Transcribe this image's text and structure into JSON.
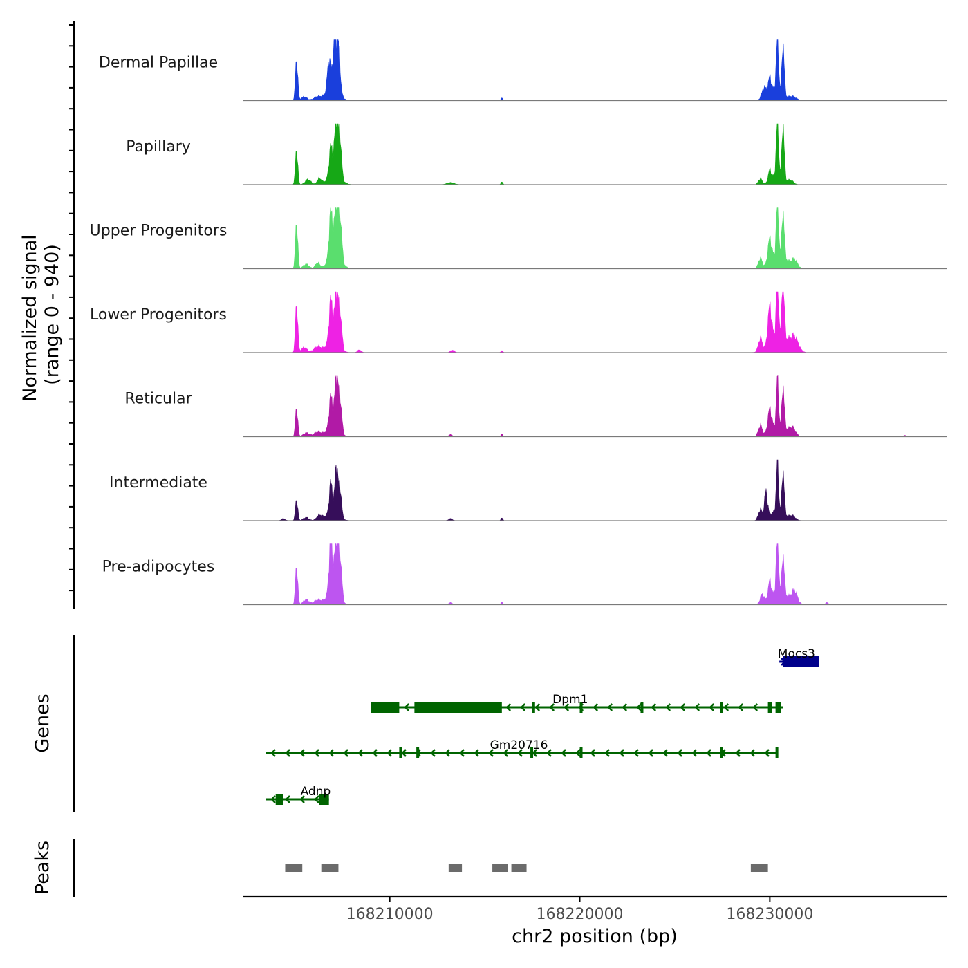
{
  "chart_data": {
    "type": "area",
    "title": "",
    "xlabel": "chr2 position (bp)",
    "ylabel": "Normalized signal\n(range 0 - 940)",
    "ylabel_line1": "Normalized signal",
    "ylabel_line2": "(range 0 - 940)",
    "ylim": [
      0,
      940
    ],
    "xlim": [
      168202300,
      168239300
    ],
    "x_ticks": [
      168210000,
      168220000,
      168230000
    ],
    "x_tick_labels": [
      "168210000",
      "168220000",
      "168230000"
    ],
    "series": [
      {
        "name": "Dermal Papillae",
        "color": "#1a3fdc",
        "peaks": [
          [
            168205100,
            660,
            60
          ],
          [
            168205500,
            60,
            150
          ],
          [
            168206200,
            60,
            200
          ],
          [
            168206800,
            440,
            80
          ],
          [
            168207100,
            720,
            90
          ],
          [
            168207300,
            700,
            90
          ],
          [
            168207000,
            250,
            300
          ],
          [
            168215900,
            40,
            50
          ],
          [
            168229700,
            160,
            120
          ],
          [
            168230000,
            230,
            80
          ],
          [
            168230400,
            840,
            60
          ],
          [
            168230700,
            810,
            60
          ],
          [
            168230300,
            180,
            350
          ],
          [
            168231200,
            60,
            200
          ]
        ]
      },
      {
        "name": "Papillary",
        "color": "#16a816",
        "peaks": [
          [
            168205100,
            560,
            60
          ],
          [
            168205700,
            80,
            150
          ],
          [
            168206300,
            90,
            120
          ],
          [
            168206900,
            420,
            90
          ],
          [
            168207200,
            940,
            90
          ],
          [
            168207400,
            560,
            70
          ],
          [
            168207100,
            200,
            300
          ],
          [
            168213200,
            30,
            200
          ],
          [
            168215900,
            40,
            50
          ],
          [
            168229500,
            90,
            100
          ],
          [
            168230000,
            160,
            80
          ],
          [
            168230400,
            880,
            60
          ],
          [
            168230700,
            860,
            60
          ],
          [
            168230400,
            160,
            300
          ],
          [
            168231100,
            60,
            150
          ]
        ]
      },
      {
        "name": "Upper Progenitors",
        "color": "#5ade6e",
        "peaks": [
          [
            168205100,
            740,
            60
          ],
          [
            168205600,
            70,
            150
          ],
          [
            168206200,
            90,
            120
          ],
          [
            168206900,
            680,
            90
          ],
          [
            168207200,
            920,
            90
          ],
          [
            168207400,
            640,
            80
          ],
          [
            168207100,
            250,
            300
          ],
          [
            168229500,
            150,
            100
          ],
          [
            168230000,
            360,
            100
          ],
          [
            168230400,
            930,
            60
          ],
          [
            168230700,
            720,
            60
          ],
          [
            168230500,
            220,
            400
          ],
          [
            168231300,
            120,
            150
          ]
        ]
      },
      {
        "name": "Lower Progenitors",
        "color": "#ee22e4",
        "peaks": [
          [
            168205100,
            780,
            60
          ],
          [
            168205500,
            80,
            150
          ],
          [
            168206200,
            90,
            200
          ],
          [
            168206900,
            620,
            90
          ],
          [
            168207200,
            840,
            90
          ],
          [
            168207400,
            520,
            80
          ],
          [
            168207000,
            200,
            300
          ],
          [
            168208400,
            40,
            100
          ],
          [
            168213300,
            40,
            100
          ],
          [
            168215900,
            30,
            50
          ],
          [
            168229500,
            200,
            100
          ],
          [
            168230000,
            560,
            100
          ],
          [
            168230400,
            1000,
            60
          ],
          [
            168230700,
            960,
            60
          ],
          [
            168230500,
            280,
            450
          ],
          [
            168231300,
            200,
            200
          ]
        ]
      },
      {
        "name": "Reticular",
        "color": "#b11aa6",
        "peaks": [
          [
            168205100,
            460,
            60
          ],
          [
            168205600,
            60,
            150
          ],
          [
            168206200,
            70,
            200
          ],
          [
            168206900,
            460,
            90
          ],
          [
            168207200,
            820,
            90
          ],
          [
            168207400,
            480,
            80
          ],
          [
            168207000,
            160,
            300
          ],
          [
            168213200,
            30,
            100
          ],
          [
            168215900,
            40,
            50
          ],
          [
            168229500,
            160,
            100
          ],
          [
            168230000,
            340,
            100
          ],
          [
            168230400,
            700,
            60
          ],
          [
            168230700,
            660,
            60
          ],
          [
            168230500,
            160,
            450
          ],
          [
            168231200,
            100,
            150
          ],
          [
            168237100,
            20,
            60
          ]
        ]
      },
      {
        "name": "Intermediate",
        "color": "#360e5a",
        "peaks": [
          [
            168205100,
            340,
            60
          ],
          [
            168204400,
            30,
            100
          ],
          [
            168205600,
            50,
            150
          ],
          [
            168206300,
            80,
            150
          ],
          [
            168206900,
            440,
            80
          ],
          [
            168207200,
            760,
            80
          ],
          [
            168207400,
            420,
            70
          ],
          [
            168207000,
            150,
            300
          ],
          [
            168213200,
            30,
            100
          ],
          [
            168215900,
            40,
            50
          ],
          [
            168229500,
            160,
            100
          ],
          [
            168229800,
            400,
            80
          ],
          [
            168230400,
            720,
            60
          ],
          [
            168230700,
            680,
            60
          ],
          [
            168230400,
            150,
            400
          ],
          [
            168231200,
            60,
            150
          ]
        ]
      },
      {
        "name": "Pre-adipocytes",
        "color": "#bd55f0",
        "peaks": [
          [
            168205100,
            620,
            60
          ],
          [
            168205600,
            80,
            150
          ],
          [
            168206200,
            70,
            200
          ],
          [
            168206900,
            820,
            90
          ],
          [
            168207200,
            980,
            90
          ],
          [
            168207400,
            640,
            80
          ],
          [
            168207000,
            200,
            300
          ],
          [
            168213200,
            30,
            100
          ],
          [
            168215900,
            40,
            50
          ],
          [
            168229600,
            140,
            100
          ],
          [
            168230000,
            260,
            80
          ],
          [
            168230400,
            980,
            60
          ],
          [
            168230700,
            620,
            60
          ],
          [
            168230500,
            200,
            450
          ],
          [
            168231300,
            180,
            150
          ],
          [
            168233000,
            40,
            60
          ]
        ]
      }
    ],
    "genes_track_label": "Genes",
    "genes": [
      {
        "name": "Mocs3",
        "strand": "+",
        "color": "#00008b",
        "row": 0,
        "start": 168230500,
        "end": 168232600,
        "exons": [
          [
            168230700,
            168232600
          ]
        ],
        "label_x": 168231400
      },
      {
        "name": "Dpm1",
        "strand": "-",
        "color": "#006400",
        "row": 1,
        "start": 168209000,
        "end": 168230700,
        "exons": [
          [
            168209000,
            168210500
          ],
          [
            168211300,
            168215900
          ],
          [
            168217500,
            168217600
          ],
          [
            168220000,
            168220100
          ],
          [
            168223200,
            168223300
          ],
          [
            168227400,
            168227500
          ],
          [
            168229900,
            168230100
          ],
          [
            168230300,
            168230600
          ]
        ],
        "label_x": 168219500
      },
      {
        "name": "Gm20716",
        "strand": "-",
        "color": "#006400",
        "row": 2,
        "start": 168203500,
        "end": 168230400,
        "exons": [
          [
            168210500,
            168210600
          ],
          [
            168211400,
            168211500
          ],
          [
            168217400,
            168217500
          ],
          [
            168220000,
            168220100
          ],
          [
            168227400,
            168227500
          ],
          [
            168230300,
            168230400
          ]
        ],
        "label_x": 168216800
      },
      {
        "name": "Adnp",
        "strand": "-",
        "color": "#006400",
        "row": 3,
        "start": 168203500,
        "end": 168206800,
        "exons": [
          [
            168204000,
            168204400
          ],
          [
            168206300,
            168206800
          ]
        ],
        "label_x": 168206100
      }
    ],
    "peaks_track_label": "Peaks",
    "peaks_color": "#6b6b6b",
    "peaks": [
      [
        168204500,
        168205400
      ],
      [
        168206400,
        168207300
      ],
      [
        168213100,
        168213800
      ],
      [
        168215400,
        168216200
      ],
      [
        168216400,
        168217200
      ],
      [
        168229000,
        168229900
      ]
    ]
  }
}
